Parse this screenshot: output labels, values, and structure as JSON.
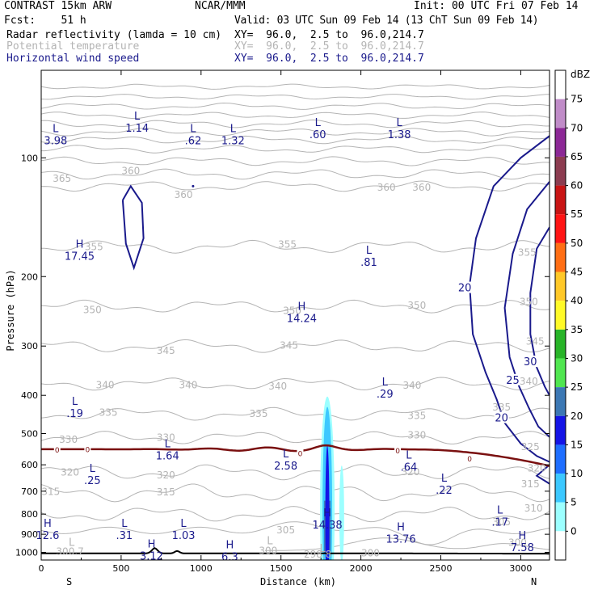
{
  "header": {
    "left_line1": "CONTRAST 15km ARW",
    "left_line2": "Fcst:    51 h",
    "center_line1": "NCAR/MMM",
    "right_line1": "Init: 00 UTC Fri 07 Feb 14",
    "valid": "Valid: 03 UTC Sun 09 Feb 14 (13 ChT Sun 09 Feb 14)",
    "fields": [
      {
        "name": "Radar reflectivity (lamda = 10 cm)",
        "xy": "XY=  96.0,  2.5 to  96.0,214.7",
        "color": "#000000"
      },
      {
        "name": "Potential temperature",
        "xy": "XY=  96.0,  2.5 to  96.0,214.7",
        "color": "#b4b4b4"
      },
      {
        "name": "Horizontal wind speed",
        "xy": "XY=  96.0,  2.5 to  96.0,214.7",
        "color": "#1a1a8c"
      }
    ]
  },
  "axes": {
    "xlabel": "Distance (km)",
    "ylabel": "Pressure (hPa)",
    "x_left_dir": "S",
    "x_right_dir": "N"
  },
  "colors": {
    "theta": "#b4b4b4",
    "wind": "#1a1a8c",
    "freezing": "#7a1010",
    "terrain": "#000000"
  },
  "chart_data": {
    "type": "contour",
    "x_range": [
      0,
      3180
    ],
    "y_range": [
      1046,
      60
    ],
    "y_scale": "log",
    "x_ticks": [
      0,
      500,
      1000,
      1500,
      2000,
      2500,
      3000
    ],
    "y_ticks": [
      100,
      200,
      300,
      400,
      500,
      600,
      700,
      800,
      900,
      1000
    ],
    "colorbar": {
      "unit": "dBZ",
      "levels": [
        0,
        5,
        10,
        15,
        20,
        25,
        30,
        35,
        40,
        45,
        50,
        55,
        60,
        65,
        70,
        75
      ],
      "colors": [
        "#ffffff",
        "#9cffff",
        "#3cc8ff",
        "#1e6eff",
        "#1414e6",
        "#3c78b4",
        "#50e650",
        "#28b428",
        "#fffa28",
        "#ffc828",
        "#ff6e14",
        "#ff1414",
        "#c81414",
        "#8c3c50",
        "#8c2896",
        "#c08cc8"
      ]
    },
    "theta_labels": [
      {
        "x": 130,
        "p": 113,
        "text": "365"
      },
      {
        "x": 560,
        "p": 108,
        "text": "360"
      },
      {
        "x": 890,
        "p": 124,
        "text": "360"
      },
      {
        "x": 2160,
        "p": 119,
        "text": "360"
      },
      {
        "x": 2380,
        "p": 119,
        "text": "360"
      },
      {
        "x": 330,
        "p": 168,
        "text": "355"
      },
      {
        "x": 1540,
        "p": 166,
        "text": "355"
      },
      {
        "x": 3040,
        "p": 174,
        "text": "355"
      },
      {
        "x": 320,
        "p": 243,
        "text": "350"
      },
      {
        "x": 1570,
        "p": 244,
        "text": "350"
      },
      {
        "x": 2350,
        "p": 237,
        "text": "350"
      },
      {
        "x": 3050,
        "p": 232,
        "text": "350"
      },
      {
        "x": 780,
        "p": 308,
        "text": "345"
      },
      {
        "x": 1550,
        "p": 299,
        "text": "345"
      },
      {
        "x": 3090,
        "p": 292,
        "text": "345"
      },
      {
        "x": 3050,
        "p": 369,
        "text": "340"
      },
      {
        "x": 400,
        "p": 377,
        "text": "340"
      },
      {
        "x": 920,
        "p": 377,
        "text": "340"
      },
      {
        "x": 1480,
        "p": 379,
        "text": "340"
      },
      {
        "x": 2320,
        "p": 378,
        "text": "340"
      },
      {
        "x": 420,
        "p": 442,
        "text": "335"
      },
      {
        "x": 1360,
        "p": 445,
        "text": "335"
      },
      {
        "x": 2350,
        "p": 451,
        "text": "335"
      },
      {
        "x": 2880,
        "p": 429,
        "text": "335"
      },
      {
        "x": 170,
        "p": 518,
        "text": "330"
      },
      {
        "x": 780,
        "p": 512,
        "text": "330"
      },
      {
        "x": 2350,
        "p": 505,
        "text": "330"
      },
      {
        "x": 3060,
        "p": 541,
        "text": "325"
      },
      {
        "x": 180,
        "p": 627,
        "text": "320"
      },
      {
        "x": 780,
        "p": 637,
        "text": "320"
      },
      {
        "x": 2310,
        "p": 625,
        "text": "320"
      },
      {
        "x": 3100,
        "p": 612,
        "text": "320"
      },
      {
        "x": 60,
        "p": 702,
        "text": "315"
      },
      {
        "x": 780,
        "p": 703,
        "text": "315"
      },
      {
        "x": 3060,
        "p": 671,
        "text": "315"
      },
      {
        "x": 3080,
        "p": 773,
        "text": "310"
      },
      {
        "x": 2880,
        "p": 838,
        "text": "305"
      },
      {
        "x": 1530,
        "p": 878,
        "text": "305"
      },
      {
        "x": 2980,
        "p": 945,
        "text": "300"
      },
      {
        "x": 1420,
        "p": 990,
        "text": "300"
      },
      {
        "x": 2060,
        "p": 1005,
        "text": "300"
      },
      {
        "x": 180,
        "p": 995,
        "text": "300.7"
      },
      {
        "x": 1730,
        "p": 1013,
        "text": "298.8"
      }
    ],
    "wind_labels": [
      {
        "x": 2650,
        "p": 213,
        "text": "20"
      },
      {
        "x": 3060,
        "p": 328,
        "text": "30"
      },
      {
        "x": 2950,
        "p": 365,
        "text": "25"
      },
      {
        "x": 2880,
        "p": 455,
        "text": "20"
      }
    ],
    "hl_markers": [
      {
        "x": 90,
        "p": 86,
        "type": "L",
        "value": "3.98"
      },
      {
        "x": 600,
        "p": 80,
        "type": "L",
        "value": "1.14"
      },
      {
        "x": 950,
        "p": 86,
        "type": "L",
        "value": ".62"
      },
      {
        "x": 1200,
        "p": 86,
        "type": "L",
        "value": "1.32"
      },
      {
        "x": 1730,
        "p": 83,
        "type": "L",
        "value": ".60"
      },
      {
        "x": 2240,
        "p": 83,
        "type": "L",
        "value": "1.38"
      },
      {
        "x": 240,
        "p": 169,
        "type": "H",
        "value": "17.45"
      },
      {
        "x": 2050,
        "p": 175,
        "type": "L",
        "value": ".81"
      },
      {
        "x": 1630,
        "p": 243,
        "type": "H",
        "value": "14.24"
      },
      {
        "x": 210,
        "p": 423,
        "type": "L",
        "value": ".19"
      },
      {
        "x": 2150,
        "p": 378,
        "type": "L",
        "value": ".29"
      },
      {
        "x": 790,
        "p": 542,
        "type": "L",
        "value": "1.64"
      },
      {
        "x": 1530,
        "p": 575,
        "type": "L",
        "value": "2.58"
      },
      {
        "x": 2300,
        "p": 579,
        "type": "L",
        "value": ".64"
      },
      {
        "x": 320,
        "p": 625,
        "type": "L",
        "value": ".25"
      },
      {
        "x": 2520,
        "p": 662,
        "type": "L",
        "value": ".22"
      },
      {
        "x": 2870,
        "p": 798,
        "type": "L",
        "value": ".17"
      },
      {
        "x": 40,
        "p": 863,
        "type": "H",
        "value": "12.6"
      },
      {
        "x": 520,
        "p": 862,
        "type": "L",
        "value": ".31"
      },
      {
        "x": 890,
        "p": 862,
        "type": "L",
        "value": "1.03"
      },
      {
        "x": 1790,
        "p": 810,
        "type": "H",
        "value": "14.38"
      },
      {
        "x": 2250,
        "p": 880,
        "type": "H",
        "value": "13.76"
      },
      {
        "x": 3010,
        "p": 925,
        "type": "H",
        "value": "7.58"
      },
      {
        "x": 690,
        "p": 972,
        "type": "H",
        "value": "3.12"
      },
      {
        "x": 1180,
        "p": 977,
        "type": "H",
        "value": "6.3"
      },
      {
        "x": 1760,
        "p": 997,
        "type": "L",
        "value": ""
      },
      {
        "x": 190,
        "p": 962,
        "type": "L",
        "value": ""
      },
      {
        "x": 1430,
        "p": 955,
        "type": "L",
        "value": ""
      }
    ],
    "freezing_label": "0"
  }
}
